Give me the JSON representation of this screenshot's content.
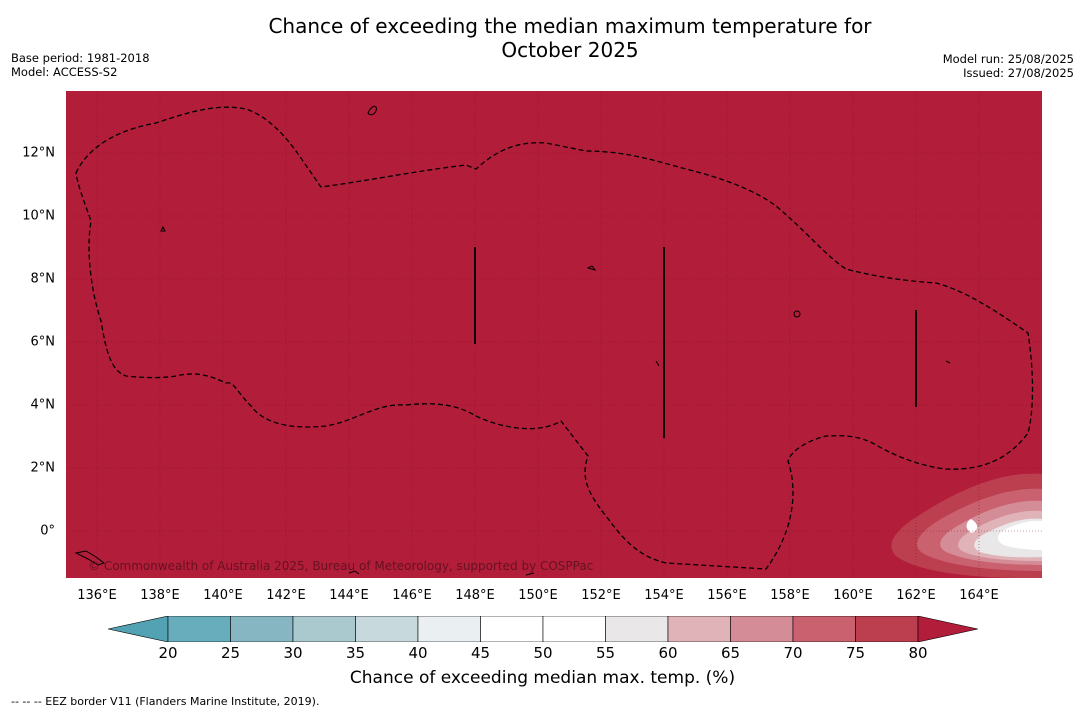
{
  "title_line1": "Chance of exceeding the median maximum temperature for",
  "title_line2": "October 2025",
  "meta_left": {
    "base_period": "Base period: 1981-2018",
    "model": "Model: ACCESS-S2"
  },
  "meta_right": {
    "model_run": "Model run: 25/08/2025",
    "issued": "Issued: 27/08/2025"
  },
  "lat_ticks": [
    "12°N",
    "10°N",
    "8°N",
    "6°N",
    "4°N",
    "2°N",
    "0°"
  ],
  "lon_ticks": [
    "136°E",
    "138°E",
    "140°E",
    "142°E",
    "144°E",
    "146°E",
    "148°E",
    "150°E",
    "152°E",
    "154°E",
    "156°E",
    "158°E",
    "160°E",
    "162°E",
    "164°E"
  ],
  "watermark": "© Commonwealth of Australia 2025, Bureau of Meteorology, supported by COSPPac",
  "colorbar": {
    "label": "Chance of exceeding median max. temp. (%)",
    "ticks": [
      "20",
      "25",
      "30",
      "35",
      "40",
      "45",
      "50",
      "55",
      "60",
      "65",
      "70",
      "75",
      "80"
    ],
    "colors": [
      "#68adbc",
      "#87b6c3",
      "#a9c9ce",
      "#c8d9dd",
      "#eaf0f2",
      "#ffffff",
      "#ffffff",
      "#e9e7e8",
      "#e0b3b9",
      "#d48d96",
      "#c9616f",
      "#bc3f50"
    ],
    "under_color": "#52a2b3",
    "over_color": "#b21d3a"
  },
  "field_color": "#b21d3a",
  "footnote": "--  --  -- EEZ border V11 (Flanders Marine Institute, 2019)."
}
